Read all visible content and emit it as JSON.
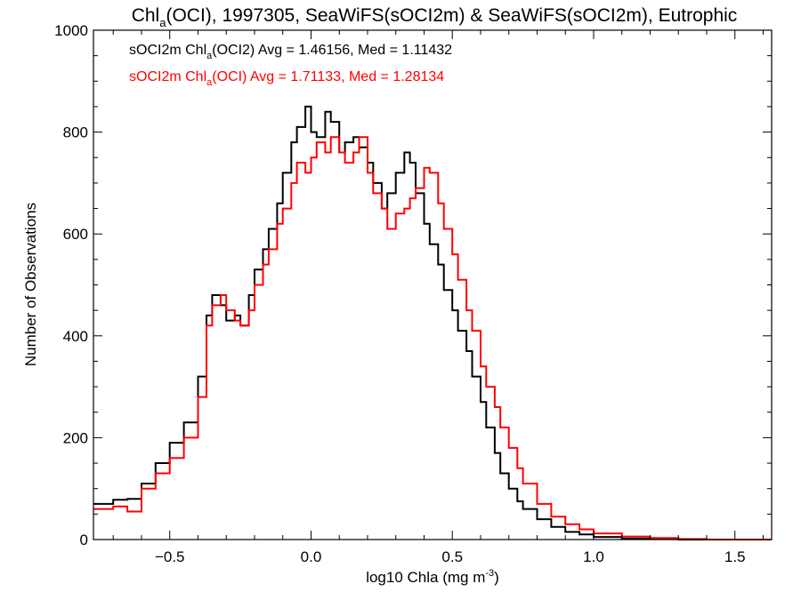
{
  "chart_data": {
    "type": "histogram-step",
    "title": {
      "pre": "Chl",
      "sub": "a",
      "post": "(OCI), 1997305, SeaWiFS(sOCI2m) & SeaWiFS(sOCI2m), Eutrophic"
    },
    "xlabel": {
      "pre": "log10 Chla (mg m",
      "sup": "-3",
      "post": ")"
    },
    "ylabel": "Number of Observations",
    "xlim": [
      -0.77,
      1.63
    ],
    "ylim": [
      0,
      1000
    ],
    "xticks": [
      -0.5,
      0.0,
      0.5,
      1.0,
      1.5
    ],
    "xtick_labels": [
      "−0.5",
      "0.0",
      "0.5",
      "1.0",
      "1.5"
    ],
    "yticks": [
      0,
      200,
      400,
      600,
      800,
      1000
    ],
    "ytick_labels": [
      "0",
      "200",
      "400",
      "600",
      "800",
      "1000"
    ],
    "x_minor_step": 0.1,
    "y_minor_step": 50,
    "legend_position": "top-left",
    "colors": {
      "series1": "#000000",
      "series2": "#ff0000"
    },
    "series": [
      {
        "name": "sOCI2m Chl_a(OCI2)",
        "legend": {
          "pre": "sOCI2m Chl",
          "sub": "a",
          "post": "(OCI2) Avg = 1.46156, Med = 1.11432"
        },
        "color": "#000000",
        "points": [
          [
            -0.77,
            70
          ],
          [
            -0.7,
            78
          ],
          [
            -0.65,
            80
          ],
          [
            -0.6,
            110
          ],
          [
            -0.55,
            150
          ],
          [
            -0.5,
            190
          ],
          [
            -0.45,
            230
          ],
          [
            -0.4,
            320
          ],
          [
            -0.37,
            440
          ],
          [
            -0.35,
            480
          ],
          [
            -0.32,
            460
          ],
          [
            -0.3,
            430
          ],
          [
            -0.27,
            440
          ],
          [
            -0.25,
            420
          ],
          [
            -0.22,
            480
          ],
          [
            -0.2,
            530
          ],
          [
            -0.17,
            570
          ],
          [
            -0.15,
            610
          ],
          [
            -0.12,
            660
          ],
          [
            -0.1,
            720
          ],
          [
            -0.07,
            780
          ],
          [
            -0.05,
            810
          ],
          [
            -0.02,
            850
          ],
          [
            0.0,
            800
          ],
          [
            0.02,
            790
          ],
          [
            0.05,
            840
          ],
          [
            0.07,
            820
          ],
          [
            0.1,
            760
          ],
          [
            0.12,
            780
          ],
          [
            0.15,
            790
          ],
          [
            0.17,
            770
          ],
          [
            0.2,
            740
          ],
          [
            0.22,
            700
          ],
          [
            0.25,
            650
          ],
          [
            0.27,
            680
          ],
          [
            0.3,
            720
          ],
          [
            0.33,
            760
          ],
          [
            0.35,
            740
          ],
          [
            0.37,
            680
          ],
          [
            0.4,
            620
          ],
          [
            0.42,
            580
          ],
          [
            0.45,
            540
          ],
          [
            0.47,
            490
          ],
          [
            0.5,
            450
          ],
          [
            0.52,
            410
          ],
          [
            0.55,
            370
          ],
          [
            0.57,
            320
          ],
          [
            0.6,
            270
          ],
          [
            0.62,
            220
          ],
          [
            0.65,
            170
          ],
          [
            0.67,
            130
          ],
          [
            0.7,
            100
          ],
          [
            0.73,
            75
          ],
          [
            0.75,
            60
          ],
          [
            0.8,
            40
          ],
          [
            0.85,
            25
          ],
          [
            0.9,
            15
          ],
          [
            0.95,
            10
          ],
          [
            1.0,
            5
          ],
          [
            1.1,
            2
          ],
          [
            1.2,
            1
          ],
          [
            1.3,
            0
          ],
          [
            1.63,
            0
          ]
        ]
      },
      {
        "name": "sOCI2m Chl_a(OCI)",
        "legend": {
          "pre": "sOCI2m Chl",
          "sub": "a",
          "post": "(OCI) Avg = 1.71133, Med = 1.28134"
        },
        "color": "#ff0000",
        "points": [
          [
            -0.77,
            60
          ],
          [
            -0.7,
            65
          ],
          [
            -0.65,
            55
          ],
          [
            -0.6,
            100
          ],
          [
            -0.55,
            130
          ],
          [
            -0.5,
            160
          ],
          [
            -0.45,
            200
          ],
          [
            -0.4,
            280
          ],
          [
            -0.37,
            420
          ],
          [
            -0.35,
            460
          ],
          [
            -0.32,
            480
          ],
          [
            -0.3,
            450
          ],
          [
            -0.27,
            430
          ],
          [
            -0.25,
            420
          ],
          [
            -0.22,
            450
          ],
          [
            -0.2,
            500
          ],
          [
            -0.17,
            540
          ],
          [
            -0.15,
            570
          ],
          [
            -0.12,
            620
          ],
          [
            -0.1,
            650
          ],
          [
            -0.07,
            700
          ],
          [
            -0.05,
            740
          ],
          [
            -0.02,
            720
          ],
          [
            0.0,
            750
          ],
          [
            0.02,
            780
          ],
          [
            0.05,
            760
          ],
          [
            0.07,
            790
          ],
          [
            0.1,
            760
          ],
          [
            0.12,
            740
          ],
          [
            0.15,
            760
          ],
          [
            0.17,
            790
          ],
          [
            0.2,
            720
          ],
          [
            0.22,
            680
          ],
          [
            0.25,
            650
          ],
          [
            0.27,
            610
          ],
          [
            0.3,
            640
          ],
          [
            0.33,
            650
          ],
          [
            0.35,
            670
          ],
          [
            0.37,
            690
          ],
          [
            0.4,
            730
          ],
          [
            0.42,
            720
          ],
          [
            0.45,
            660
          ],
          [
            0.47,
            610
          ],
          [
            0.5,
            560
          ],
          [
            0.52,
            510
          ],
          [
            0.55,
            450
          ],
          [
            0.57,
            410
          ],
          [
            0.6,
            340
          ],
          [
            0.62,
            300
          ],
          [
            0.65,
            260
          ],
          [
            0.67,
            220
          ],
          [
            0.7,
            180
          ],
          [
            0.73,
            140
          ],
          [
            0.75,
            110
          ],
          [
            0.8,
            70
          ],
          [
            0.85,
            45
          ],
          [
            0.9,
            30
          ],
          [
            0.95,
            20
          ],
          [
            1.0,
            12
          ],
          [
            1.1,
            6
          ],
          [
            1.2,
            3
          ],
          [
            1.3,
            1
          ],
          [
            1.4,
            0
          ],
          [
            1.63,
            0
          ]
        ]
      }
    ]
  }
}
